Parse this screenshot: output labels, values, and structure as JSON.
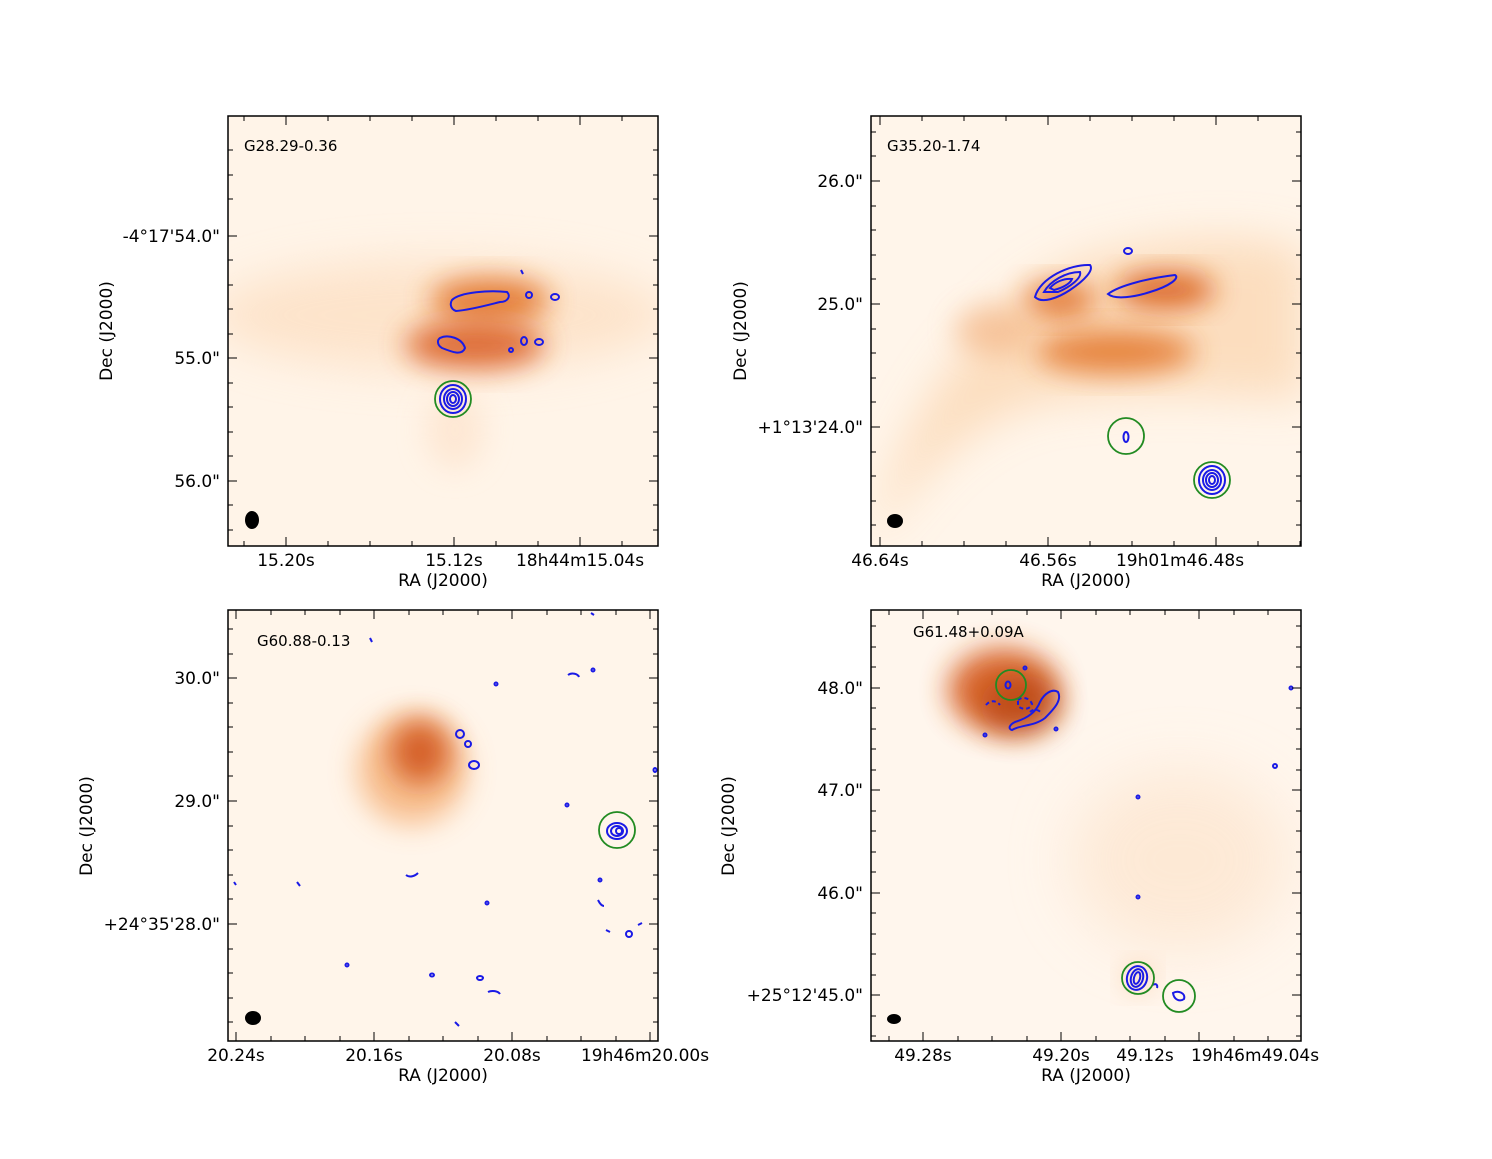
{
  "chart_data": [
    {
      "type": "heatmap",
      "title": "G28.29-0.36",
      "xlabel": "RA (J2000)",
      "ylabel": "Dec (J2000)",
      "x_ticks": [
        "15.20s",
        "15.12s",
        "18h44m15.04s"
      ],
      "y_ticks": [
        "-4°17'54.0\"",
        "55.0\"",
        "56.0\""
      ],
      "colormap": "white-to-orange",
      "contour_color": "#1a1ae6",
      "marker_color": "#228B22",
      "markers": [
        "circle around compact contour source"
      ]
    },
    {
      "type": "heatmap",
      "title": "G35.20-1.74",
      "xlabel": "RA (J2000)",
      "ylabel": "Dec (J2000)",
      "x_ticks": [
        "46.64s",
        "46.56s",
        "19h01m46.48s"
      ],
      "y_ticks": [
        "26.0\"",
        "25.0\"",
        "+1°13'24.0\""
      ],
      "colormap": "white-to-orange",
      "contour_color": "#1a1ae6",
      "marker_color": "#228B22",
      "markers": [
        "circle around weak contour",
        "circle around compact contour source"
      ]
    },
    {
      "type": "heatmap",
      "title": "G60.88-0.13",
      "xlabel": "RA (J2000)",
      "ylabel": "Dec (J2000)",
      "x_ticks": [
        "20.24s",
        "20.16s",
        "20.08s",
        "19h46m20.00s"
      ],
      "y_ticks": [
        "30.0\"",
        "29.0\"",
        "+24°35'28.0\""
      ],
      "colormap": "white-to-orange",
      "contour_color": "#1a1ae6",
      "marker_color": "#228B22",
      "markers": [
        "circle around compact contour source"
      ]
    },
    {
      "type": "heatmap",
      "title": "G61.48+0.09A",
      "xlabel": "RA (J2000)",
      "ylabel": "Dec (J2000)",
      "x_ticks": [
        "49.28s",
        "49.20s",
        "49.12s",
        "19h46m49.04s"
      ],
      "y_ticks": [
        "48.0\"",
        "47.0\"",
        "46.0\"",
        "+25°12'45.0\""
      ],
      "colormap": "white-to-orange",
      "contour_color": "#1a1ae6",
      "marker_color": "#228B22",
      "markers": [
        "circle on emission peak",
        "circle around compact source",
        "circle around weak source"
      ]
    }
  ]
}
